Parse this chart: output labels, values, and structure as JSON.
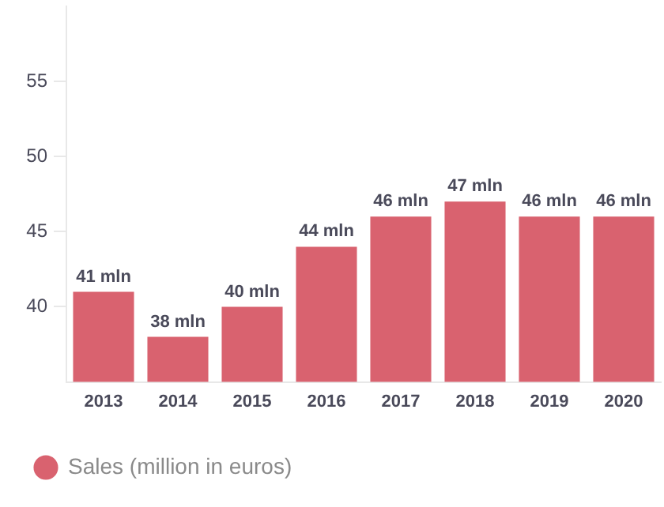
{
  "chart_data": {
    "type": "bar",
    "categories": [
      "2013",
      "2014",
      "2015",
      "2016",
      "2017",
      "2018",
      "2019",
      "2020"
    ],
    "series": [
      {
        "name": "Sales (million in euros)",
        "color": "#d9626f",
        "values": [
          41,
          38,
          40,
          44,
          46,
          47,
          46,
          46
        ],
        "value_labels": [
          "41 mln",
          "38 mln",
          "40 mln",
          "44 mln",
          "46 mln",
          "47 mln",
          "46 mln",
          "46 mln"
        ]
      }
    ],
    "ylim": [
      35,
      60
    ],
    "yticks": [
      40,
      45,
      50,
      55
    ],
    "grid": false,
    "legend": "bottom left"
  }
}
